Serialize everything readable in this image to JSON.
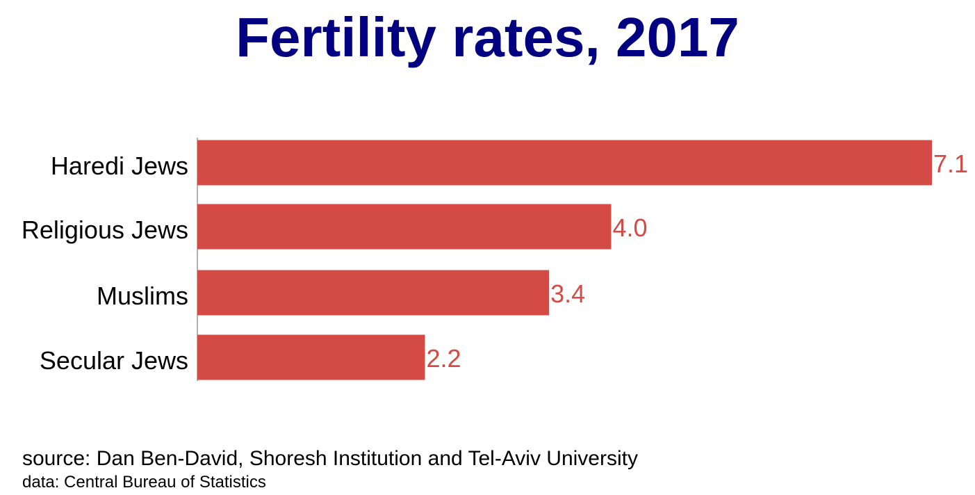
{
  "chart_data": {
    "type": "bar",
    "orientation": "horizontal",
    "title": "Fertility rates, 2017",
    "categories": [
      "Haredi Jews",
      "Religious Jews",
      "Muslims",
      "Secular Jews"
    ],
    "values": [
      7.1,
      4.0,
      3.4,
      2.2
    ],
    "data_labels": [
      "7.1",
      "4.0",
      "3.4",
      "2.2"
    ],
    "xlim": [
      0,
      7.1
    ],
    "grid": false,
    "legend": "none",
    "colors": {
      "bar": "#d44a44",
      "data_label": "#d44a44",
      "title": "#000080",
      "axis": "#999999"
    }
  },
  "footer": {
    "source": "source: Dan Ben-David, Shoresh Institution and Tel-Aviv University",
    "data": "data: Central Bureau of Statistics"
  }
}
